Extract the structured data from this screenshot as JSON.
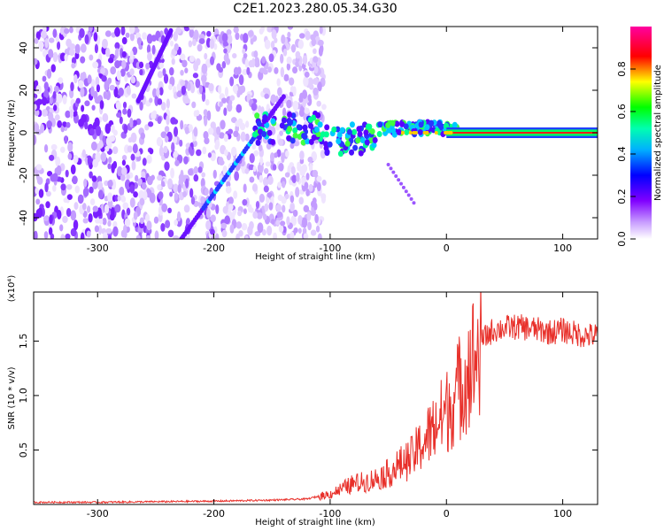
{
  "title": "C2E1.2023.280.05.34.G30",
  "chart_data": [
    {
      "type": "heatmap",
      "xlabel": "Height of straight line (km)",
      "ylabel": "Frequency (Hz)",
      "xlim": [
        -355,
        130
      ],
      "ylim": [
        -50,
        50
      ],
      "xticks": [
        -300,
        -200,
        -100,
        0,
        100
      ],
      "xtick_labels": [
        "-300",
        "-200",
        "-100",
        "0",
        "100"
      ],
      "yticks": [
        -40,
        -20,
        0,
        20,
        40
      ],
      "ytick_labels": [
        "-40",
        "-20",
        "0",
        "20",
        "40"
      ],
      "colorbar": {
        "label": "Normalized spectral amplitude",
        "range": [
          0,
          1
        ],
        "ticks": [
          0.0,
          0.2,
          0.4,
          0.6,
          0.8
        ],
        "tick_labels": [
          "0.0",
          "0.2",
          "0.4",
          "0.6",
          "0.8"
        ],
        "colors": [
          "#ffffff",
          "#8000ff",
          "#0000ff",
          "#00ffff",
          "#00ff00",
          "#ffff00",
          "#ff0000",
          "#ff00ff"
        ]
      },
      "features": {
        "noise_region_x": [
          -355,
          -115
        ],
        "central_line": {
          "y": 0,
          "x_start": -165,
          "x_end": 130
        },
        "diagonal_lines": [
          {
            "x": [
              -265,
              -237
            ],
            "y": [
              15,
              48
            ]
          },
          {
            "x": [
              -228,
              -140
            ],
            "y": [
              -50,
              17
            ]
          }
        ],
        "faint_branch": {
          "x": [
            -50,
            -28
          ],
          "y": [
            -15,
            -33
          ]
        }
      },
      "grid": false
    },
    {
      "type": "line",
      "xlabel": "Height of straight line (km)",
      "ylabel": "SNR (10 * v/v)",
      "yscale_label": "(x10⁴)",
      "xlim": [
        -355,
        130
      ],
      "ylim": [
        0.0,
        1.95
      ],
      "xticks": [
        -300,
        -200,
        -100,
        0,
        100
      ],
      "xtick_labels": [
        "-300",
        "-200",
        "-100",
        "0",
        "100"
      ],
      "yticks": [
        0.5,
        1.0,
        1.5
      ],
      "ytick_labels": [
        "0.5",
        "1.0",
        "1.5"
      ],
      "color": "#e8302a",
      "grid": false,
      "x": [
        -355,
        -300,
        -250,
        -200,
        -150,
        -120,
        -100,
        -90,
        -80,
        -70,
        -60,
        -50,
        -40,
        -30,
        -20,
        -10,
        0,
        10,
        20,
        30,
        40,
        50,
        60,
        70,
        80,
        90,
        100,
        110,
        120,
        130
      ],
      "y": [
        0.02,
        0.02,
        0.025,
        0.03,
        0.04,
        0.05,
        0.1,
        0.15,
        0.2,
        0.22,
        0.25,
        0.3,
        0.38,
        0.45,
        0.6,
        0.75,
        0.9,
        1.1,
        1.35,
        1.5,
        1.6,
        1.62,
        1.63,
        1.62,
        1.6,
        1.58,
        1.6,
        1.57,
        1.55,
        1.55
      ]
    }
  ]
}
